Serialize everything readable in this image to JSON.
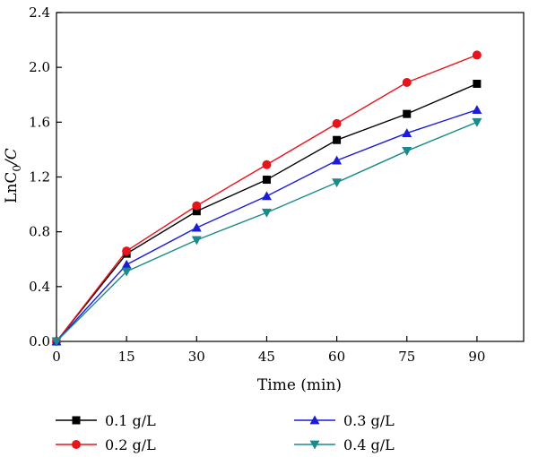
{
  "chart_data": {
    "type": "line",
    "xlabel": "Time (min)",
    "ylabel": {
      "base": "LnC",
      "sub": "0",
      "rest": "/C"
    },
    "x": [
      0,
      15,
      30,
      45,
      60,
      75,
      90
    ],
    "xlim": [
      0,
      100
    ],
    "ylim": [
      0,
      2.4
    ],
    "xticks": [
      "0",
      "15",
      "30",
      "45",
      "60",
      "75",
      "90"
    ],
    "yticks": [
      "0.0",
      "0.4",
      "0.8",
      "1.2",
      "1.6",
      "2.0",
      "2.4"
    ],
    "grid": false,
    "legend_position": "bottom",
    "series": [
      {
        "name": "0.1 g/L",
        "values": [
          0,
          0.64,
          0.95,
          1.18,
          1.47,
          1.66,
          1.88
        ],
        "color": "#000000",
        "marker": "square"
      },
      {
        "name": "0.2 g/L",
        "values": [
          0,
          0.66,
          0.99,
          1.29,
          1.59,
          1.89,
          2.09
        ],
        "color": "#e8141b",
        "marker": "circle"
      },
      {
        "name": "0.3 g/L",
        "values": [
          0,
          0.56,
          0.83,
          1.06,
          1.32,
          1.52,
          1.69
        ],
        "color": "#1c1cd6",
        "marker": "triangle-up"
      },
      {
        "name": "0.4 g/L",
        "values": [
          0,
          0.51,
          0.74,
          0.94,
          1.16,
          1.39,
          1.6
        ],
        "color": "#1a8a8a",
        "marker": "triangle-down"
      }
    ]
  }
}
